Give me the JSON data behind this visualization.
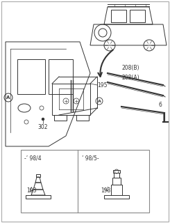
{
  "bg_color": "#f0f0f0",
  "line_color": "#333333",
  "border_color": "#888888",
  "labels": {
    "A_circle": "A",
    "302": "302",
    "195": "195",
    "208B": "208(B)",
    "208A": "208(A)",
    "6": "6",
    "193_left": "193",
    "193_right": "193",
    "year_left": "-’ 98/4",
    "year_right": "’ 98/5-"
  },
  "title": "",
  "figsize": [
    2.45,
    3.2
  ],
  "dpi": 100
}
